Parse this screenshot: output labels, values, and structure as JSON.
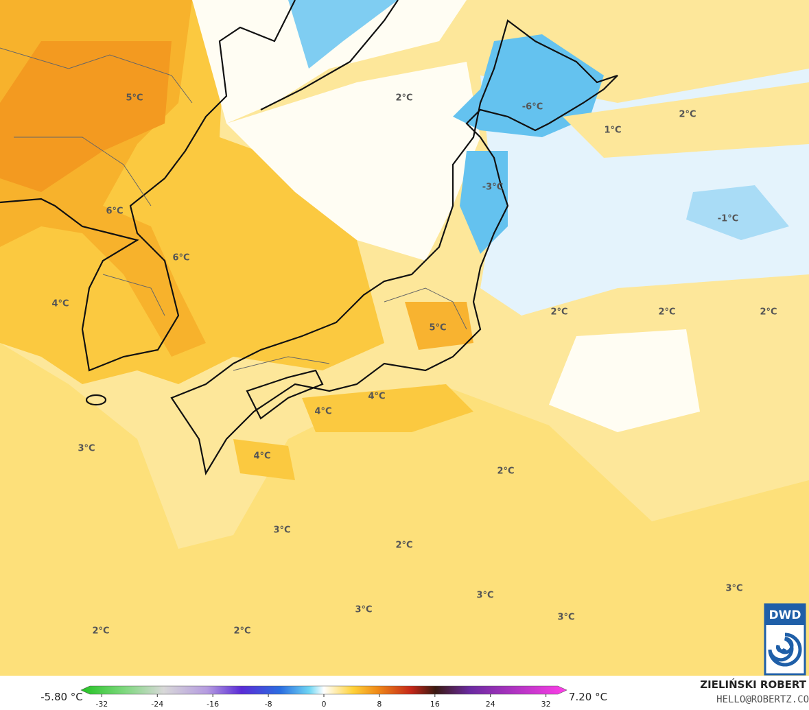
{
  "map": {
    "temperature_labels": [
      "5°C",
      "2°C",
      "-6°C",
      "2°C",
      "1°C",
      "-3°C",
      "-1°C",
      "6°C",
      "6°C",
      "4°C",
      "2°C",
      "2°C",
      "2°C",
      "5°C",
      "4°C",
      "4°C",
      "3°C",
      "4°C",
      "2°C",
      "3°C",
      "2°C",
      "3°C",
      "3°C",
      "3°C",
      "3°C",
      "2°C",
      "2°C"
    ],
    "legend": {
      "min_label": "-5.80 °C",
      "max_label": "7.20 °C",
      "lim": [
        -35,
        35
      ],
      "ticks": [
        -32,
        -24,
        -16,
        -8,
        0,
        8,
        16,
        24,
        32
      ]
    },
    "credit": {
      "author": "ZIELIŃSKI ROBERT",
      "contact": "HELLO@ROBERTZ.CO"
    },
    "logo": "DWD"
  }
}
